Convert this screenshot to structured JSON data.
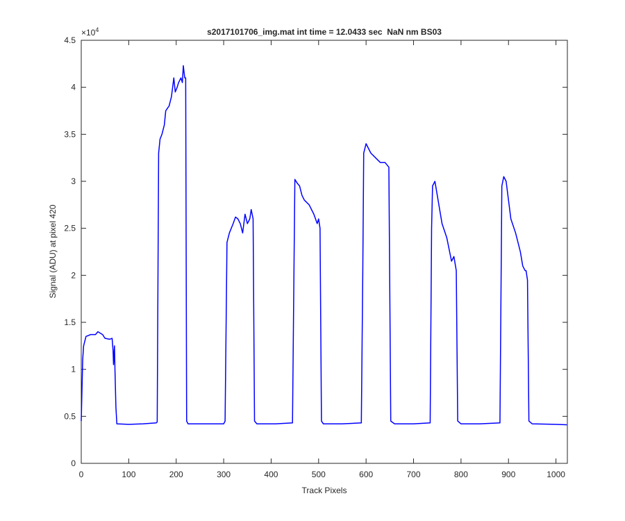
{
  "chart_data": {
    "type": "line",
    "title": "s2017101706_img.mat int time = 12.0433 sec  NaN nm BS03",
    "x_label": "Track Pixels",
    "y_label": "Signal (ADU) at pixel 420",
    "y_multiplier": {
      "base": "×10",
      "exponent": "4"
    },
    "color": "#0000ff",
    "xlim": [
      0,
      1024
    ],
    "xticks": [
      0,
      100,
      200,
      300,
      400,
      500,
      600,
      700,
      800,
      900,
      1000
    ],
    "ylim": [
      0,
      45000
    ],
    "yticks": [
      {
        "value": 0,
        "label": "0"
      },
      {
        "value": 5000,
        "label": "0.5"
      },
      {
        "value": 10000,
        "label": "1"
      },
      {
        "value": 15000,
        "label": "1.5"
      },
      {
        "value": 20000,
        "label": "2"
      },
      {
        "value": 25000,
        "label": "2.5"
      },
      {
        "value": 30000,
        "label": "3"
      },
      {
        "value": 35000,
        "label": "3.5"
      },
      {
        "value": 40000,
        "label": "4"
      },
      {
        "value": 45000,
        "label": "4.5"
      }
    ],
    "x": [
      0,
      3,
      5,
      10,
      20,
      30,
      35,
      45,
      50,
      60,
      65,
      67,
      68,
      70,
      71,
      73,
      75,
      100,
      130,
      158,
      160,
      163,
      166,
      170,
      175,
      178,
      182,
      185,
      190,
      195,
      198,
      202,
      205,
      210,
      213,
      215,
      218,
      220,
      222,
      225,
      260,
      300,
      303,
      307,
      312,
      320,
      325,
      330,
      335,
      340,
      345,
      350,
      355,
      358,
      362,
      365,
      370,
      410,
      445,
      448,
      450,
      455,
      460,
      465,
      470,
      480,
      490,
      497,
      500,
      503,
      506,
      510,
      550,
      590,
      593,
      595,
      600,
      605,
      610,
      620,
      630,
      640,
      648,
      652,
      660,
      700,
      735,
      738,
      740,
      745,
      750,
      755,
      760,
      770,
      780,
      785,
      790,
      793,
      800,
      840,
      882,
      886,
      890,
      895,
      900,
      905,
      915,
      925,
      930,
      935,
      937,
      940,
      943,
      950,
      1000,
      1023
    ],
    "values": [
      4500,
      11000,
      12500,
      13500,
      13700,
      13700,
      14000,
      13700,
      13300,
      13200,
      13300,
      12000,
      10500,
      12500,
      10000,
      6000,
      4200,
      4150,
      4200,
      4300,
      4400,
      33000,
      34500,
      35000,
      36000,
      37500,
      37800,
      38000,
      39000,
      41000,
      39500,
      40000,
      40500,
      41000,
      40500,
      42300,
      41000,
      41000,
      4500,
      4200,
      4200,
      4200,
      4500,
      23500,
      24500,
      25500,
      26200,
      26000,
      25500,
      24500,
      26500,
      25500,
      26000,
      27000,
      26000,
      4500,
      4200,
      4200,
      4300,
      20000,
      30200,
      29800,
      29500,
      28500,
      28000,
      27500,
      26500,
      25500,
      26000,
      25000,
      4500,
      4200,
      4200,
      4300,
      20000,
      33000,
      34000,
      33500,
      33000,
      32500,
      32000,
      32000,
      31500,
      4500,
      4200,
      4200,
      4300,
      25000,
      29500,
      30000,
      28500,
      27000,
      25500,
      24000,
      21500,
      22000,
      20500,
      4500,
      4200,
      4200,
      4300,
      29500,
      30500,
      30000,
      28000,
      26000,
      24500,
      22500,
      21000,
      20500,
      20500,
      19500,
      4500,
      4200,
      4150,
      4100
    ]
  }
}
